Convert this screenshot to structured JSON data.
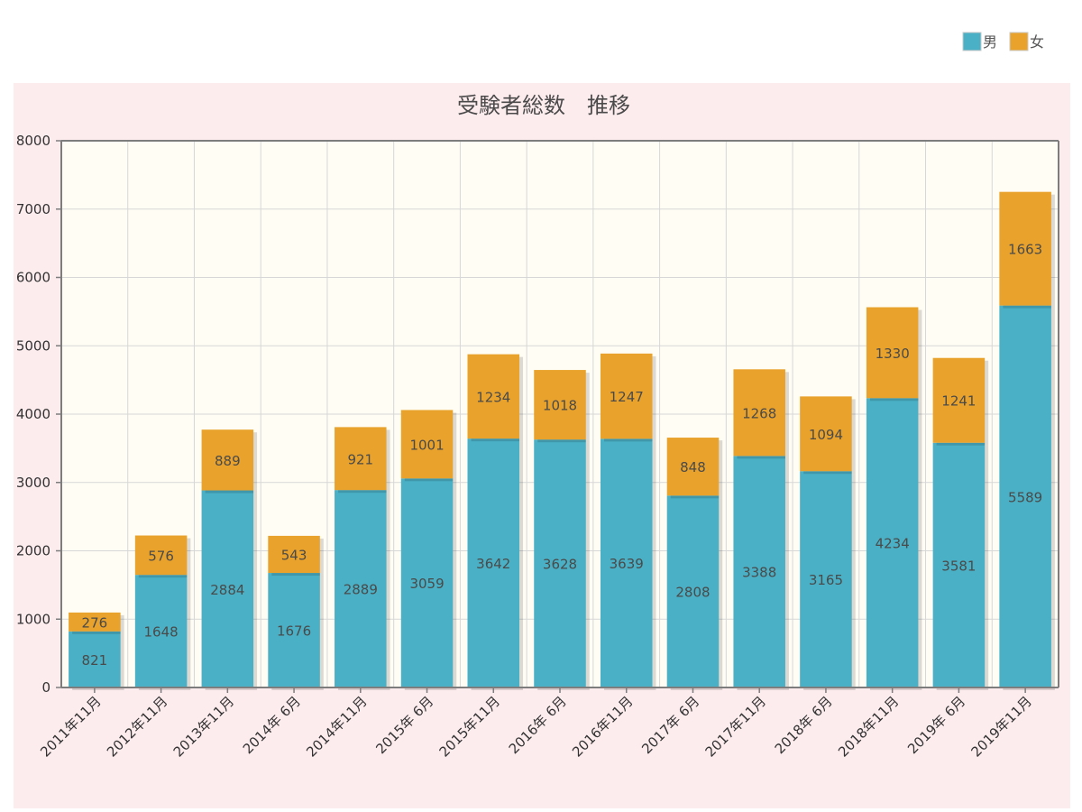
{
  "chart_data": {
    "type": "bar",
    "stacked": true,
    "title": "受験者総数　推移",
    "categories": [
      "2011年11月",
      "2012年11月",
      "2013年11月",
      "2014年 6月",
      "2014年11月",
      "2015年 6月",
      "2015年11月",
      "2016年 6月",
      "2016年11月",
      "2017年 6月",
      "2017年11月",
      "2018年 6月",
      "2018年11月",
      "2019年 6月",
      "2019年11月"
    ],
    "series": [
      {
        "name": "男",
        "color": "#4ab0c5",
        "values": [
          821,
          1648,
          2884,
          1676,
          2889,
          3059,
          3642,
          3628,
          3639,
          2808,
          3388,
          3165,
          4234,
          3581,
          5589
        ]
      },
      {
        "name": "女",
        "color": "#e9a22b",
        "values": [
          276,
          576,
          889,
          543,
          921,
          1001,
          1234,
          1018,
          1247,
          848,
          1268,
          1094,
          1330,
          1241,
          1663
        ]
      }
    ],
    "ylim": [
      0,
      8000
    ],
    "yticks": [
      0,
      1000,
      2000,
      3000,
      4000,
      5000,
      6000,
      7000,
      8000
    ],
    "grid": true,
    "legend_position": "top-right"
  }
}
